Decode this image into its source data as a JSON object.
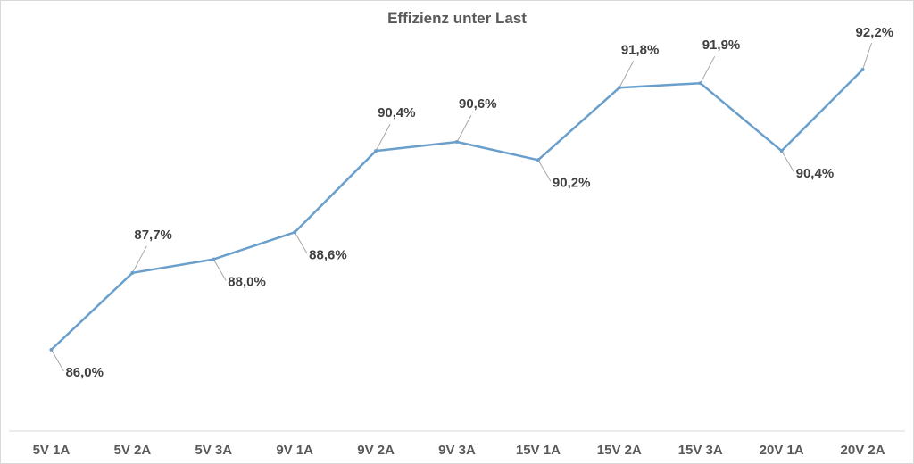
{
  "chart_data": {
    "type": "line",
    "title": "Effizienz unter Last",
    "categories": [
      "5V 1A",
      "5V 2A",
      "5V 3A",
      "9V 1A",
      "9V 2A",
      "9V 3A",
      "15V 1A",
      "15V 2A",
      "15V 3A",
      "20V 1A",
      "20V 2A"
    ],
    "values": [
      86.0,
      87.7,
      88.0,
      88.6,
      90.4,
      90.6,
      90.2,
      91.8,
      91.9,
      90.4,
      92.2
    ],
    "data_labels": [
      "86,0%",
      "87,7%",
      "88,0%",
      "88,6%",
      "90,4%",
      "90,6%",
      "90,2%",
      "91,8%",
      "91,9%",
      "90,4%",
      "92,2%"
    ],
    "label_positions": [
      "below",
      "above",
      "below",
      "below",
      "above",
      "above",
      "below",
      "above",
      "above",
      "below",
      "above"
    ],
    "xlabel": "",
    "ylabel": "",
    "ylim": [
      84.2,
      92.2
    ],
    "grid": false,
    "legend": "none",
    "series_color": "#6a9fcc",
    "leader_color": "#a6a6a6"
  }
}
